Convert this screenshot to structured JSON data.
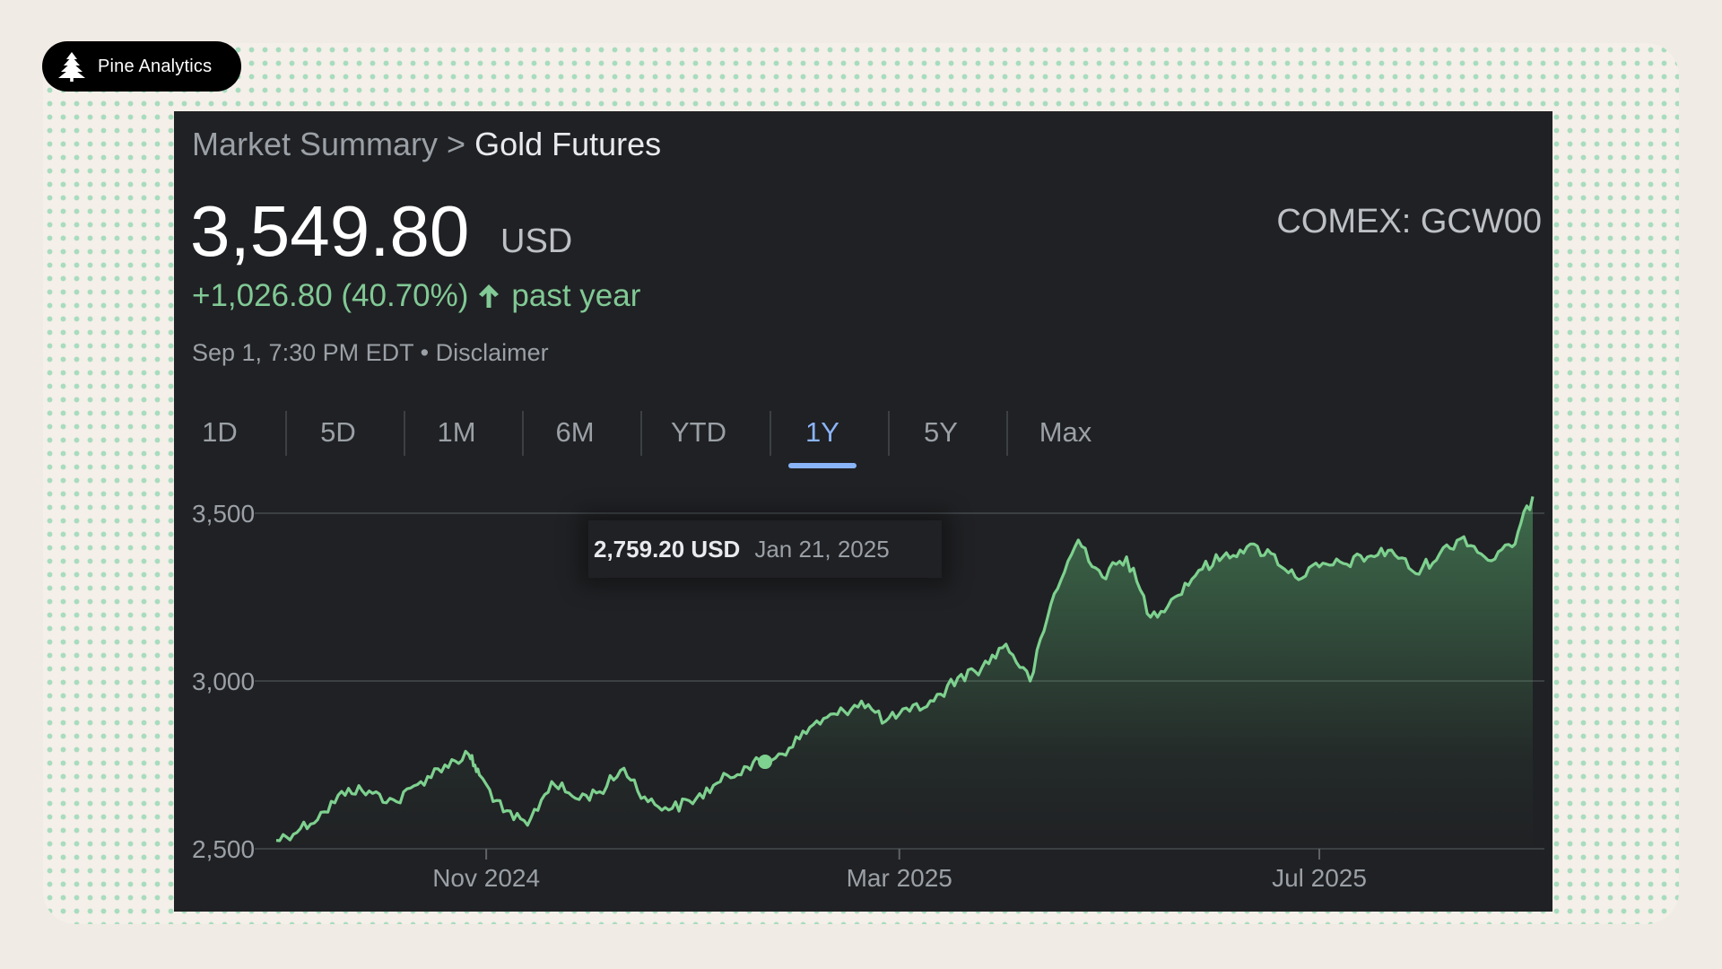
{
  "brand": {
    "name": "Pine Analytics",
    "icon": "pine-tree-icon"
  },
  "breadcrumb": {
    "parent": "Market Summary",
    "separator": ">",
    "current": "Gold Futures"
  },
  "quote": {
    "price": "3,549.80",
    "currency": "USD",
    "exchange": "COMEX: GCW00",
    "change": "+1,026.80 (40.70%)",
    "change_period": "past year",
    "timestamp": "Sep 1, 7:30 PM EDT",
    "bullet": "•",
    "disclaimer": "Disclaimer"
  },
  "tabs": [
    {
      "label": "1D",
      "active": false
    },
    {
      "label": "5D",
      "active": false
    },
    {
      "label": "1M",
      "active": false
    },
    {
      "label": "6M",
      "active": false
    },
    {
      "label": "YTD",
      "active": false
    },
    {
      "label": "1Y",
      "active": true
    },
    {
      "label": "5Y",
      "active": false
    },
    {
      "label": "Max",
      "active": false
    }
  ],
  "tooltip": {
    "value": "2,759.20 USD",
    "date": "Jan 21, 2025"
  },
  "colors": {
    "positive": "#81c995",
    "line": "#7ed18f",
    "accent_tab": "#8ab4f8",
    "panel_bg": "#202124",
    "page_bg": "#f0ebe4",
    "dots": "#a8dcbf"
  },
  "chart_data": {
    "type": "area",
    "ylim": [
      2500,
      3500
    ],
    "yticks": [
      2500,
      3000,
      3500
    ],
    "ytick_labels": [
      "2,500",
      "3,000",
      "3,500"
    ],
    "xlim": [
      "2024-09-01",
      "2025-09-01"
    ],
    "xticks": [
      "2024-11-01",
      "2025-03-01",
      "2025-07-01"
    ],
    "xtick_labels": [
      "Nov 2024",
      "Mar 2025",
      "Jul 2025"
    ],
    "grid": true,
    "highlight": {
      "x": "2025-01-21",
      "y": 2759.2
    },
    "series": [
      {
        "x": [
          "2024-09-01",
          "2024-09-08",
          "2024-09-15",
          "2024-09-22",
          "2024-09-29",
          "2024-10-06",
          "2024-10-13",
          "2024-10-20",
          "2024-10-27",
          "2024-10-30",
          "2024-11-06",
          "2024-11-13",
          "2024-11-20",
          "2024-11-27",
          "2024-12-04",
          "2024-12-11",
          "2024-12-18",
          "2024-12-25",
          "2025-01-01",
          "2025-01-08",
          "2025-01-15",
          "2025-01-21",
          "2025-01-28",
          "2025-02-04",
          "2025-02-11",
          "2025-02-18",
          "2025-02-25",
          "2025-03-04",
          "2025-03-11",
          "2025-03-18",
          "2025-03-25",
          "2025-04-01",
          "2025-04-08",
          "2025-04-15",
          "2025-04-22",
          "2025-04-29",
          "2025-05-06",
          "2025-05-13",
          "2025-05-20",
          "2025-05-27",
          "2025-06-03",
          "2025-06-10",
          "2025-06-17",
          "2025-06-24",
          "2025-07-01",
          "2025-07-08",
          "2025-07-15",
          "2025-07-22",
          "2025-07-29",
          "2025-08-05",
          "2025-08-12",
          "2025-08-19",
          "2025-08-26",
          "2025-09-01"
        ],
        "values": [
          2525,
          2560,
          2610,
          2680,
          2665,
          2640,
          2700,
          2750,
          2780,
          2720,
          2610,
          2570,
          2700,
          2650,
          2670,
          2740,
          2640,
          2620,
          2650,
          2700,
          2745,
          2759.2,
          2800,
          2870,
          2900,
          2940,
          2880,
          2910,
          2940,
          3010,
          3040,
          3110,
          3000,
          3260,
          3420,
          3310,
          3370,
          3190,
          3250,
          3330,
          3370,
          3400,
          3380,
          3310,
          3340,
          3350,
          3370,
          3390,
          3320,
          3380,
          3430,
          3360,
          3400,
          3549.8
        ]
      }
    ]
  }
}
